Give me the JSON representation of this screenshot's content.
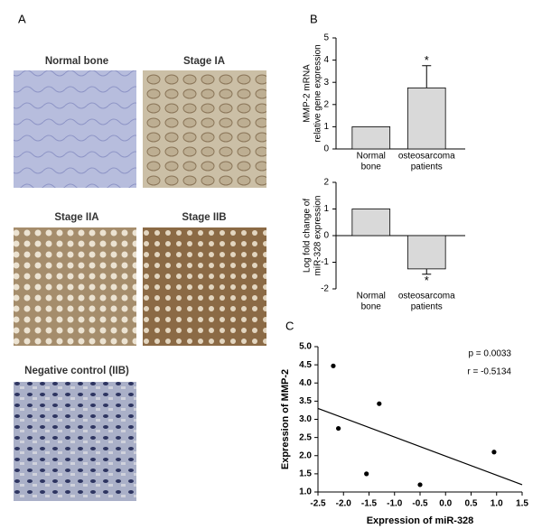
{
  "panel_labels": [
    "A",
    "B",
    "C"
  ],
  "images": [
    "Normal bone",
    "Stage IA",
    "Stage IIA",
    "Stage IIB",
    "Negative control (IIB)"
  ],
  "chart_data": [
    {
      "type": "bar",
      "y_label": [
        "MMP-2 mRNA",
        "relative gene expression"
      ],
      "categories": [
        [
          "Normal",
          "bone"
        ],
        [
          "osteosarcoma",
          "patients"
        ]
      ],
      "values": [
        1,
        2.75
      ],
      "errors": [
        null,
        1
      ],
      "significance": [
        null,
        "*"
      ],
      "color": "#d9d9d9",
      "ylim": [
        0,
        5
      ],
      "yticks": [
        0,
        1,
        2,
        3,
        4,
        5
      ]
    },
    {
      "type": "bar",
      "y_label": [
        "Log fold change of",
        "miR-328 expression"
      ],
      "categories": [
        [
          "Normal",
          "bone"
        ],
        [
          "osteosarcoma",
          "patients"
        ]
      ],
      "values": [
        1,
        -1.25
      ],
      "errors": [
        null,
        0.2
      ],
      "significance": [
        null,
        "*"
      ],
      "color": "#d9d9d9",
      "ylim": [
        -2,
        2
      ],
      "yticks": [
        -2,
        -1,
        0,
        1,
        2
      ]
    },
    {
      "type": "scatter",
      "x_label": "Expression of miR-328",
      "y_label": "Expression of MMP-2",
      "x": [
        -2.2,
        -2.1,
        -1.3,
        -1.55,
        -0.5,
        0.95
      ],
      "y": [
        4.47,
        2.75,
        3.43,
        1.5,
        1.2,
        2.1
      ],
      "color": "#000000",
      "trendline": {
        "x": [
          -2.5,
          1.5
        ],
        "y": [
          3.3,
          1.2
        ]
      },
      "annotations": [
        "p = 0.0033",
        "r = -0.5134"
      ],
      "xlim": [
        -2.5,
        1.5
      ],
      "ylim": [
        1.0,
        5.0
      ],
      "xticks": [
        -2.5,
        {
          "value": -2,
          "label": "-2.0"
        },
        -1.5,
        {
          "value": -1,
          "label": "-1.0"
        },
        -0.5,
        {
          "value": 0,
          "label": "0.0"
        },
        0.5,
        {
          "value": 1,
          "label": "1.0"
        },
        1.5
      ],
      "yticks": [
        {
          "value": 1,
          "label": "1.0"
        },
        1.5,
        {
          "value": 2,
          "label": "2.0"
        },
        2.5,
        {
          "value": 3,
          "label": "3.0"
        },
        3.5,
        {
          "value": 4,
          "label": "4.0"
        },
        4.5,
        {
          "value": 5,
          "label": "5.0"
        }
      ]
    }
  ]
}
